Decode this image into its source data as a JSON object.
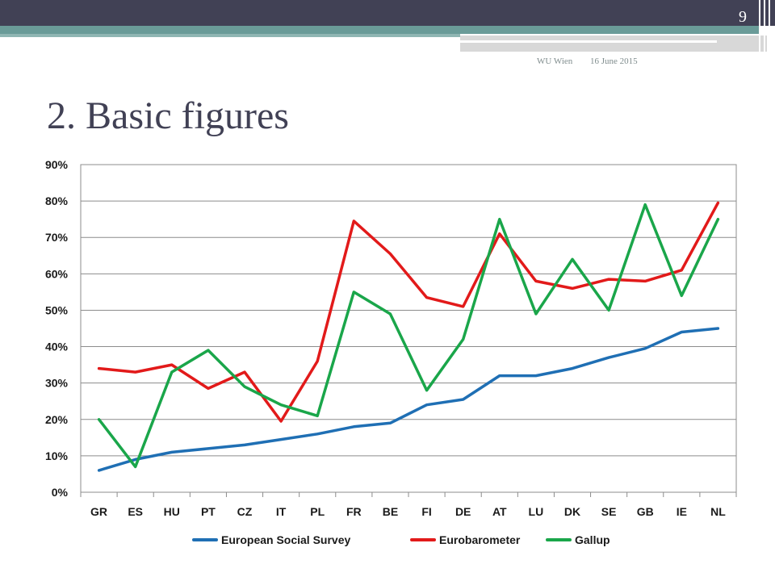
{
  "slide": {
    "page_number": "9",
    "footer_left": "WU Wien",
    "footer_right": "16 June 2015",
    "title": "2. Basic figures"
  },
  "colors": {
    "header_dark": "#414155",
    "header_teal": "#6a9b98"
  },
  "chart_data": {
    "type": "line",
    "categories": [
      "GR",
      "ES",
      "HU",
      "PT",
      "CZ",
      "IT",
      "PL",
      "FR",
      "BE",
      "FI",
      "DE",
      "AT",
      "LU",
      "DK",
      "SE",
      "GB",
      "IE",
      "NL"
    ],
    "series": [
      {
        "name": "European Social Survey",
        "color": "#1f6fb4",
        "values": [
          6,
          9,
          11,
          12,
          13,
          14.5,
          16,
          18,
          19,
          24,
          25.5,
          32,
          32,
          34,
          37,
          39.5,
          44,
          45
        ]
      },
      {
        "name": "Eurobarometer",
        "color": "#e21a1a",
        "values": [
          34,
          33,
          35,
          28.5,
          33,
          19.5,
          36,
          74.5,
          65.5,
          53.5,
          51,
          71,
          58,
          56,
          58.5,
          58,
          61,
          79.5
        ]
      },
      {
        "name": "Gallup",
        "color": "#1aa64a",
        "values": [
          20,
          7,
          33,
          39,
          29,
          24,
          21,
          55,
          49,
          28,
          42,
          75,
          49,
          64,
          50,
          79,
          54,
          75
        ]
      }
    ],
    "yticks": [
      "0%",
      "10%",
      "20%",
      "30%",
      "40%",
      "50%",
      "60%",
      "70%",
      "80%",
      "90%"
    ],
    "ylim": [
      0,
      90
    ],
    "grid": true,
    "legend_position": "bottom"
  }
}
